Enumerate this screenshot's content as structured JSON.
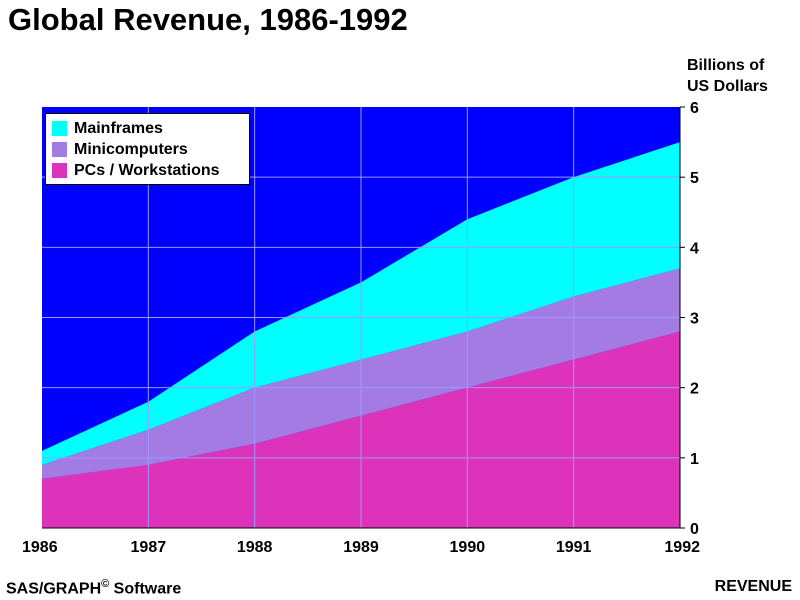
{
  "title": "Global Revenue, 1986-1992",
  "footer": {
    "left_main": "SAS/GRAPH",
    "left_sup": "©",
    "left_tail": " Software",
    "right": "REVENUE"
  },
  "chart_data": {
    "type": "area",
    "stacked": true,
    "title": "Global Revenue, 1986-1992",
    "xlabel": "",
    "ylabel_lines": [
      "Billions of",
      "US Dollars"
    ],
    "x": [
      1986,
      1987,
      1988,
      1989,
      1990,
      1991,
      1992
    ],
    "xlim": [
      1986,
      1992
    ],
    "ylim": [
      0,
      6
    ],
    "yticks": [
      0,
      1,
      2,
      3,
      4,
      5,
      6
    ],
    "yaxis_side": "right",
    "grid": true,
    "legend_position": "top-left",
    "background_color": "#0000ff",
    "grid_color": "#9a9aff",
    "series": [
      {
        "name": "PCs / Workstations",
        "color": "#dd33bb",
        "values": [
          0.7,
          0.9,
          1.2,
          1.6,
          2.0,
          2.4,
          2.8
        ]
      },
      {
        "name": "Minicomputers",
        "color": "#a37be3",
        "values": [
          0.2,
          0.5,
          0.8,
          0.8,
          0.8,
          0.9,
          0.9
        ]
      },
      {
        "name": "Mainframes",
        "color": "#00ffff",
        "values": [
          0.2,
          0.4,
          0.8,
          1.1,
          1.6,
          1.7,
          1.8
        ]
      }
    ]
  },
  "legend": {
    "items": [
      {
        "label": "Mainframes",
        "color": "#00ffff"
      },
      {
        "label": "Minicomputers",
        "color": "#a37be3"
      },
      {
        "label": "PCs / Workstations",
        "color": "#dd33bb"
      }
    ]
  }
}
